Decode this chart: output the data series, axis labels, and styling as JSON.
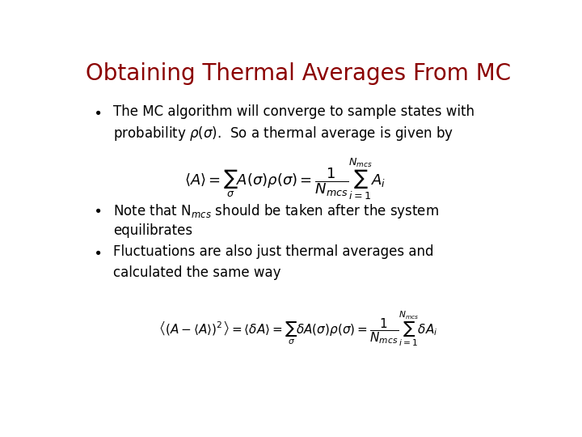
{
  "title": "Obtaining Thermal Averages From MC",
  "title_color": "#8B0000",
  "title_fontsize": 20,
  "bg_color": "#FFFFFF",
  "bullet1_line1": "The MC algorithm will converge to sample states with",
  "bullet1_line2": "probability $\\rho(\\sigma)$.  So a thermal average is given by",
  "eq1": "$\\langle A \\rangle = \\sum_{\\sigma} A(\\sigma)\\rho(\\sigma) = \\dfrac{1}{N_{mcs}} \\sum_{i=1}^{N_{mcs}} A_i$",
  "bullet2_line1": "Note that N$_{mcs}$ should be taken after the system",
  "bullet2_line2": "equilibrates",
  "bullet3_line1": "Fluctuations are also just thermal averages and",
  "bullet3_line2": "calculated the same way",
  "eq2": "$\\left\\langle \\left(A - \\langle A \\rangle\\right)^2 \\right\\rangle = \\langle \\delta A \\rangle = \\sum_{\\sigma} \\delta A(\\sigma)\\rho(\\sigma) = \\dfrac{1}{N_{mcs}} \\sum_{i=1}^{N_{mcs}} \\delta A_i$",
  "text_color": "#000000",
  "text_fontsize": 12,
  "eq_fontsize": 13,
  "eq2_fontsize": 11
}
